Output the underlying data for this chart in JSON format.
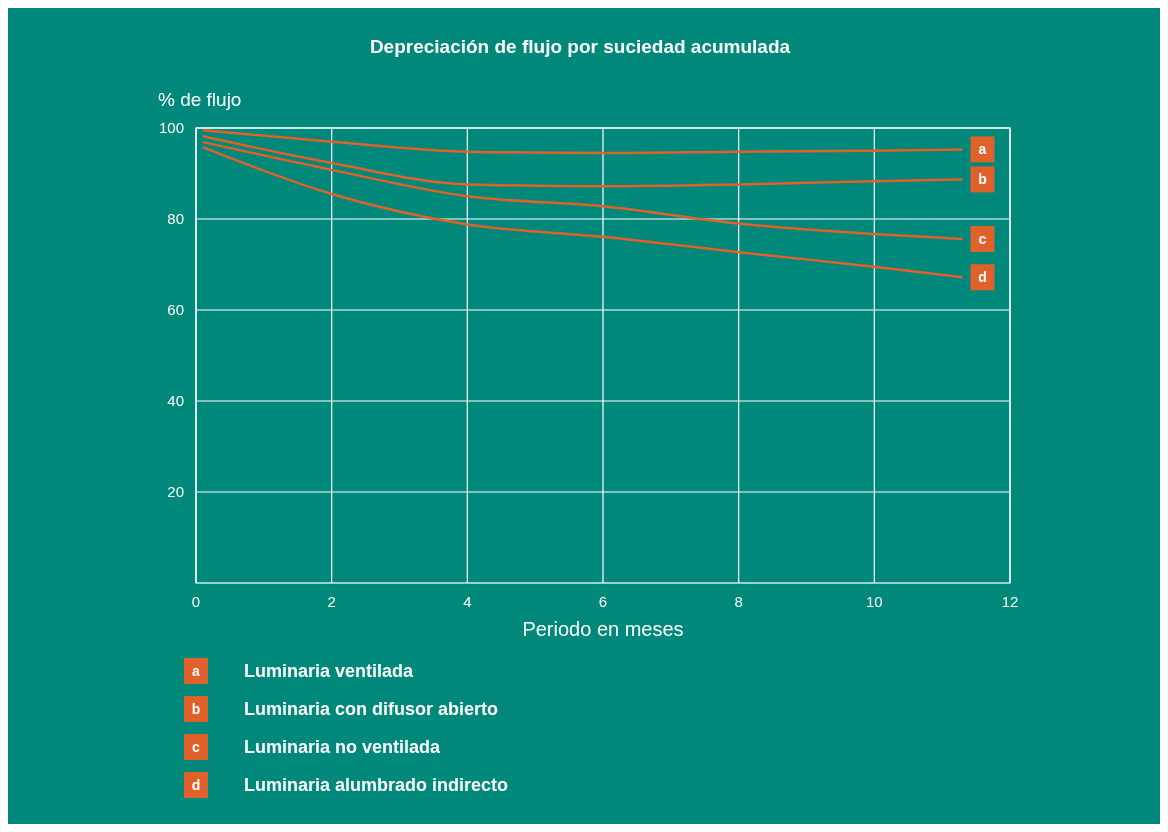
{
  "chart_data": {
    "type": "line",
    "title": "Depreciación de flujo por suciedad acumulada",
    "xlabel": "Periodo en meses",
    "ylabel": "% de flujo",
    "x": [
      0.1,
      2,
      4,
      6,
      8,
      10,
      11.3
    ],
    "series": [
      {
        "name": "Luminaria ventilada",
        "color": "#e0622a",
        "values": [
          99.5,
          97,
          94.8,
          94.5,
          94.8,
          95,
          95.3
        ]
      },
      {
        "name": "Luminaria con difusor abierto",
        "color": "#e0622a",
        "values": [
          98.2,
          92.3,
          87.6,
          87.2,
          87.6,
          88.3,
          88.7
        ]
      },
      {
        "name": "Luminaria no ventilada",
        "color": "#e0622a",
        "values": [
          96.9,
          90.8,
          85,
          82.8,
          79,
          76.7,
          75.6
        ]
      },
      {
        "name": "Luminaria alumbrado indirecto",
        "color": "#e0622a",
        "values": [
          95.8,
          85.5,
          78.8,
          76.1,
          72.7,
          69.5,
          67.2
        ]
      }
    ],
    "annotations": [
      "a",
      "b",
      "c",
      "d"
    ],
    "xlim": [
      0,
      12
    ],
    "xticks": [
      0,
      2,
      4,
      6,
      8,
      10,
      12
    ],
    "ylim": [
      0,
      100
    ],
    "yticks": [
      20,
      40,
      60,
      80,
      100
    ],
    "grid": true,
    "legend": "bottom",
    "marker": "none",
    "line_style": "solid"
  }
}
